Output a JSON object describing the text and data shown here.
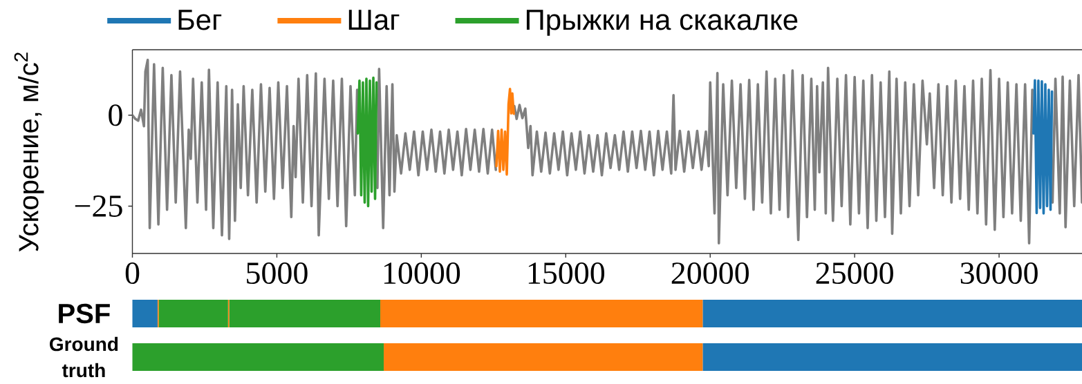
{
  "chart_data": [
    {
      "type": "line",
      "ylabel": "Ускорение, м/с$^{2}$",
      "xlim": [
        0,
        32870
      ],
      "ylim": [
        -38,
        18
      ],
      "xticks": [
        0,
        5000,
        10000,
        15000,
        20000,
        25000,
        30000
      ],
      "yticks": [
        {
          "value": -25,
          "label": "−25"
        },
        0
      ],
      "legend": "top",
      "series": [
        {
          "color": "#7f7f7f",
          "x": [
            0,
            100,
            200,
            300,
            400,
            450,
            530,
            600,
            750,
            900,
            1050,
            1200,
            1350,
            1500,
            1650,
            1850,
            1950,
            2020,
            2100,
            2250,
            2400,
            2550,
            2650,
            2800,
            2950,
            3100,
            3250,
            3350,
            3450,
            3550,
            3650,
            3750,
            3850,
            4000,
            4150,
            4300,
            4450,
            4600,
            4750,
            4900,
            5050,
            5200,
            5350,
            5500,
            5580,
            5650,
            5750,
            5900,
            6050,
            6200,
            6350,
            6450,
            6650,
            6800,
            6950,
            7100,
            7250,
            7400,
            7550,
            7700,
            7780,
            7790,
            8480,
            8540,
            8680,
            8800,
            8900,
            9000,
            9070,
            9150,
            9300,
            9450,
            9600,
            9750,
            9900,
            10050,
            10200,
            10350,
            10500,
            10650,
            10800,
            10950,
            11100,
            11250,
            11400,
            11550,
            11700,
            11850,
            12000,
            12150,
            12300,
            12450,
            12580,
            12590,
            13220,
            13300,
            13400,
            13500,
            13600,
            13700,
            13780,
            13850,
            14000,
            14150,
            14300,
            14450,
            14600,
            14750,
            14900,
            15050,
            15200,
            15350,
            15500,
            15650,
            15800,
            15950,
            16100,
            16250,
            16400,
            16550,
            16700,
            16850,
            17000,
            17150,
            17300,
            17450,
            17600,
            17750,
            17900,
            18050,
            18200,
            18350,
            18500,
            18650,
            18730,
            18800,
            18950,
            19100,
            19250,
            19400,
            19550,
            19700,
            19850,
            19950,
            20000,
            20150,
            20250,
            20300,
            20450,
            20600,
            20750,
            20900,
            21050,
            21200,
            21350,
            21500,
            21650,
            21800,
            21950,
            22100,
            22250,
            22400,
            22550,
            22700,
            22850,
            23050,
            23200,
            23350,
            23500,
            23620,
            23700,
            23780,
            23900,
            24000,
            24080,
            24250,
            24400,
            24550,
            24700,
            24850,
            25000,
            25150,
            25300,
            25450,
            25600,
            25750,
            25900,
            26050,
            26200,
            26300,
            26450,
            26600,
            26750,
            26900,
            27050,
            27200,
            27350,
            27500,
            27600,
            27750,
            27900,
            28050,
            28200,
            28350,
            28500,
            28650,
            28800,
            28950,
            29100,
            29250,
            29400,
            29550,
            29700,
            29850,
            30000,
            30150,
            30300,
            30450,
            30600,
            30750,
            30900,
            31040,
            31150,
            31170,
            31850,
            31950,
            32100,
            32200,
            32300,
            32450,
            32600,
            32750,
            32870
          ],
          "values": [
            0,
            -1,
            -1.5,
            1.5,
            -3,
            12,
            15.2,
            -31,
            14,
            -30,
            13,
            -26,
            11,
            -24,
            12,
            -31,
            -4,
            -12,
            10,
            -24,
            9,
            -26,
            12.5,
            -31,
            9,
            -33,
            8,
            -34,
            7,
            -29,
            3,
            -20,
            8,
            -22,
            7,
            -24,
            8.5,
            -21,
            7.5,
            -23,
            9,
            -20,
            8,
            -28,
            -3,
            -17,
            10,
            -24,
            11,
            -25,
            11.5,
            -33,
            10,
            -23,
            9.5,
            -25,
            10,
            -30.5,
            8,
            -22,
            7,
            null,
            -20,
            12.7,
            -31,
            8,
            -22,
            8.5,
            -21,
            -5.5,
            -16,
            -5,
            -15,
            -4.5,
            -16.5,
            -4.5,
            -15,
            -4,
            -15.5,
            -4.5,
            -16,
            -4,
            -15,
            -4.5,
            -16.5,
            -3.8,
            -15,
            -4,
            -15.5,
            -3.8,
            -16,
            -4,
            -15,
            null,
            2.5,
            -1,
            2.8,
            -0.8,
            1.8,
            -9,
            -3,
            -16.5,
            -4.5,
            -15.5,
            -4.8,
            -16,
            -5,
            -15,
            -4.5,
            -16.5,
            -5,
            -15,
            -4.5,
            -16,
            -5.5,
            -15.5,
            -5.5,
            -16.5,
            -5,
            -14.5,
            -5.5,
            -15,
            -4.5,
            -15.5,
            -4.5,
            -14.5,
            -4.3,
            -15,
            -4.5,
            -16.5,
            -4.3,
            -15,
            -4.5,
            -16,
            5.5,
            -15,
            -4.3,
            -15.5,
            -4.5,
            -14.5,
            -4.3,
            -15,
            -4.5,
            -14,
            9,
            -27,
            11.6,
            -35.2,
            8.5,
            -22,
            9.5,
            -20,
            8.5,
            -23,
            9.7,
            -26,
            8.5,
            -24,
            12,
            -27,
            10,
            -26,
            11,
            -28,
            12.3,
            -34.3,
            11,
            -28,
            10,
            -26,
            8,
            -15.7,
            9,
            -27,
            13,
            -29,
            10,
            -25,
            11,
            -30,
            10.5,
            -27,
            9.5,
            -31,
            11,
            -29,
            9,
            -28,
            12,
            -32.6,
            10,
            -27,
            9,
            -25,
            8.5,
            -22,
            9.5,
            -8,
            6,
            -20,
            8.5,
            -22,
            8,
            -24,
            9.5,
            -23,
            8,
            -26,
            9.5,
            -27,
            10,
            -30,
            12.4,
            -31.5,
            10,
            -28,
            9,
            -27,
            8.5,
            -29,
            8.5,
            -35.2,
            7,
            null,
            -24,
            10,
            -27,
            10.6,
            -30.8,
            9.5,
            -25,
            11,
            -24
          ]
        },
        {
          "name": "Бег",
          "color": "#1f77b4",
          "x": [
            31190,
            31240,
            31300,
            31360,
            31420,
            31480,
            31540,
            31600,
            31660,
            31720,
            31780,
            31830
          ],
          "values": [
            -5,
            9.6,
            -26.9,
            9.5,
            -25.5,
            9.3,
            -27,
            8.5,
            -25,
            7,
            -26,
            6.5
          ]
        },
        {
          "name": "Шаг",
          "color": "#ff7f0e",
          "x": [
            12600,
            12660,
            12720,
            12780,
            12840,
            12900,
            12960,
            13020,
            13070,
            13110,
            13150,
            13200
          ],
          "values": [
            -14,
            -4.3,
            -15.5,
            -4,
            -15,
            -4.5,
            -16.3,
            3,
            7.2,
            0.5,
            6,
            0.4
          ]
        },
        {
          "name": "Прыжки на скакалке",
          "color": "#2ca02c",
          "x": [
            7800,
            7860,
            7920,
            7980,
            8040,
            8100,
            8160,
            8220,
            8280,
            8340,
            8400,
            8450
          ],
          "values": [
            -5,
            9.5,
            -22,
            9,
            -24,
            10,
            -25,
            9.5,
            -21,
            10.3,
            -23,
            9
          ]
        }
      ]
    },
    {
      "type": "bar",
      "orientation": "horizontal",
      "stacked": true,
      "categories": [
        "PSF",
        "Ground truth"
      ],
      "xlim": [
        0,
        32870
      ],
      "tick_labels": "y",
      "series": [
        {
          "color": "#1f77b4",
          "values": [
            870,
            null
          ]
        },
        {
          "color": "#ff7f0e",
          "values": [
            40,
            null
          ]
        },
        {
          "color": "#2ca02c",
          "values": [
            2400,
            8700
          ]
        },
        {
          "color": "#ff7f0e",
          "values": [
            40,
            null
          ]
        },
        {
          "color": "#2ca02c",
          "values": [
            5230,
            null
          ]
        },
        {
          "color": "#ff7f0e",
          "values": [
            11160,
            11040
          ]
        },
        {
          "color": "#1f77b4",
          "values": [
            13130,
            13130
          ]
        }
      ]
    }
  ]
}
